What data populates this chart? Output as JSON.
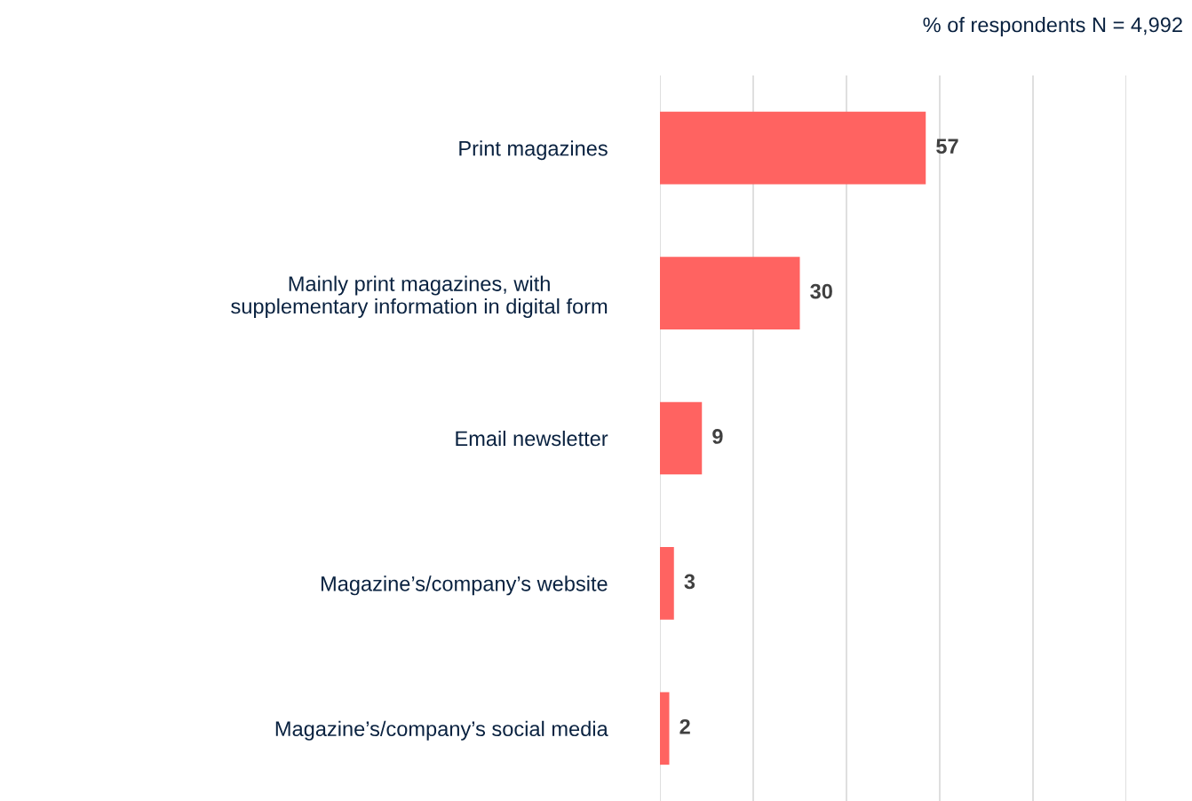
{
  "chart_data": {
    "type": "bar",
    "orientation": "horizontal",
    "title": "% of respondents N = 4,992",
    "categories": [
      "Print magazines",
      "Mainly print magazines, with\nsupplementary information in digital form",
      "Email newsletter",
      "Magazine’s/company’s website",
      "Magazine’s/company’s social media"
    ],
    "values": [
      57,
      30,
      9,
      3,
      2
    ],
    "color": "#ff6361",
    "data_labels": true,
    "xlim": [
      0,
      100
    ],
    "xticks": [
      {
        "value": 0,
        "label": null
      },
      {
        "value": 20,
        "label": null
      },
      {
        "value": 40,
        "label": null
      },
      {
        "value": 60,
        "label": null
      },
      {
        "value": 80,
        "label": null
      },
      {
        "value": 100,
        "label": null
      }
    ],
    "grid": "x",
    "tick_labels": "y"
  }
}
